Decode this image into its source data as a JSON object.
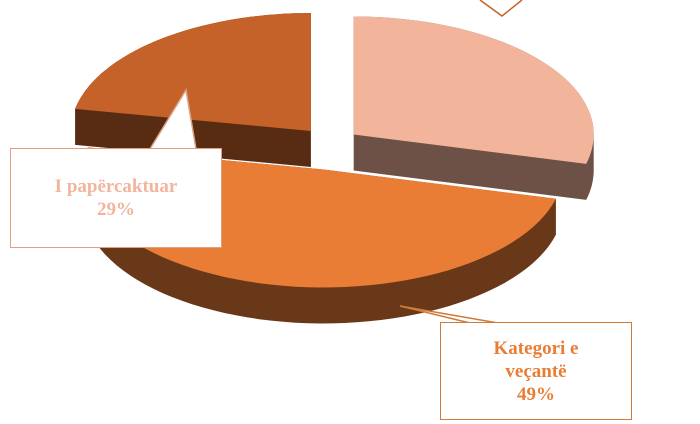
{
  "chart_data": {
    "type": "pie",
    "categories": [
      "I papërcaktuar",
      "Kategori e veçantë",
      null
    ],
    "values": [
      29,
      49,
      22
    ],
    "value_labels": [
      "29%",
      "49%",
      null
    ],
    "colors": [
      "#f2b59c",
      "#e97d35",
      "#c4622a"
    ]
  }
}
